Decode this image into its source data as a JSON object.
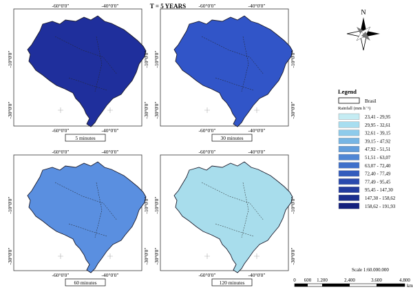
{
  "title": "T = 5 YEARS",
  "panels": [
    {
      "caption": "5 minutes",
      "fill": "#1f2f9c",
      "top_labels": [
        "-60°0'0\"",
        "-40°0'0\""
      ],
      "side_labels": [
        "-10°0'0\"",
        "-30°0'0\""
      ],
      "bottom_labels": [
        "-60°0'0\"",
        "-40°0'0\""
      ]
    },
    {
      "caption": "30 minutes",
      "fill": "#3155c8",
      "top_labels": [
        "-60°0'0\"",
        "-40°0'0\""
      ],
      "side_labels": [
        "-10°0'0\"",
        "-30°0'0\""
      ],
      "bottom_labels": [
        "-60°0'0\"",
        "-40°0'0\""
      ]
    },
    {
      "caption": "60 minutes",
      "fill": "#5a8fe0",
      "top_labels": [
        "-60°0'0\"",
        "-40°0'0\""
      ],
      "side_labels": [
        "-10°0'0\"",
        "-30°0'0\""
      ],
      "bottom_labels": [
        "-60°0'0\"",
        "-40°0'0\""
      ]
    },
    {
      "caption": "120 minutes",
      "fill": "#a8ddec",
      "top_labels": [
        "-60°0'0\"",
        "-40°0'0\""
      ],
      "side_labels": [
        "-10°0'0\"",
        "-30°0'0\""
      ],
      "bottom_labels": [
        "-60°0'0\"",
        "-40°0'0\""
      ]
    }
  ],
  "north_label": "N",
  "legend": {
    "title": "Legend",
    "boundary_label": "Brasil",
    "rainfall_label": "Rainfall (mm h⁻¹)",
    "classes": [
      {
        "label": "23,41 - 29,95",
        "color": "#c5ecf3"
      },
      {
        "label": "29,95 - 32,61",
        "color": "#a8def0"
      },
      {
        "label": "32,61 - 39,15",
        "color": "#8ecbeb"
      },
      {
        "label": "39,15 - 47,92",
        "color": "#76b5e4"
      },
      {
        "label": "47,92 - 51,51",
        "color": "#619ddc"
      },
      {
        "label": "51,51 - 63,07",
        "color": "#4f86d4"
      },
      {
        "label": "63,07 - 72,40",
        "color": "#3f70ca"
      },
      {
        "label": "72,40 - 77,49",
        "color": "#335cbd"
      },
      {
        "label": "77,49 - 95,45",
        "color": "#2a4aae"
      },
      {
        "label": "95,45 - 147,30",
        "color": "#223b9e"
      },
      {
        "label": "147,30 - 158,62",
        "color": "#1b2e8e"
      },
      {
        "label": "158,62 - 191,93",
        "color": "#13207d"
      }
    ]
  },
  "scale": {
    "text": "Scale   1:60.000.000",
    "ticks": [
      "0",
      "600",
      "1.200",
      "2.400",
      "3.600",
      "4.800"
    ],
    "unit": "km"
  }
}
